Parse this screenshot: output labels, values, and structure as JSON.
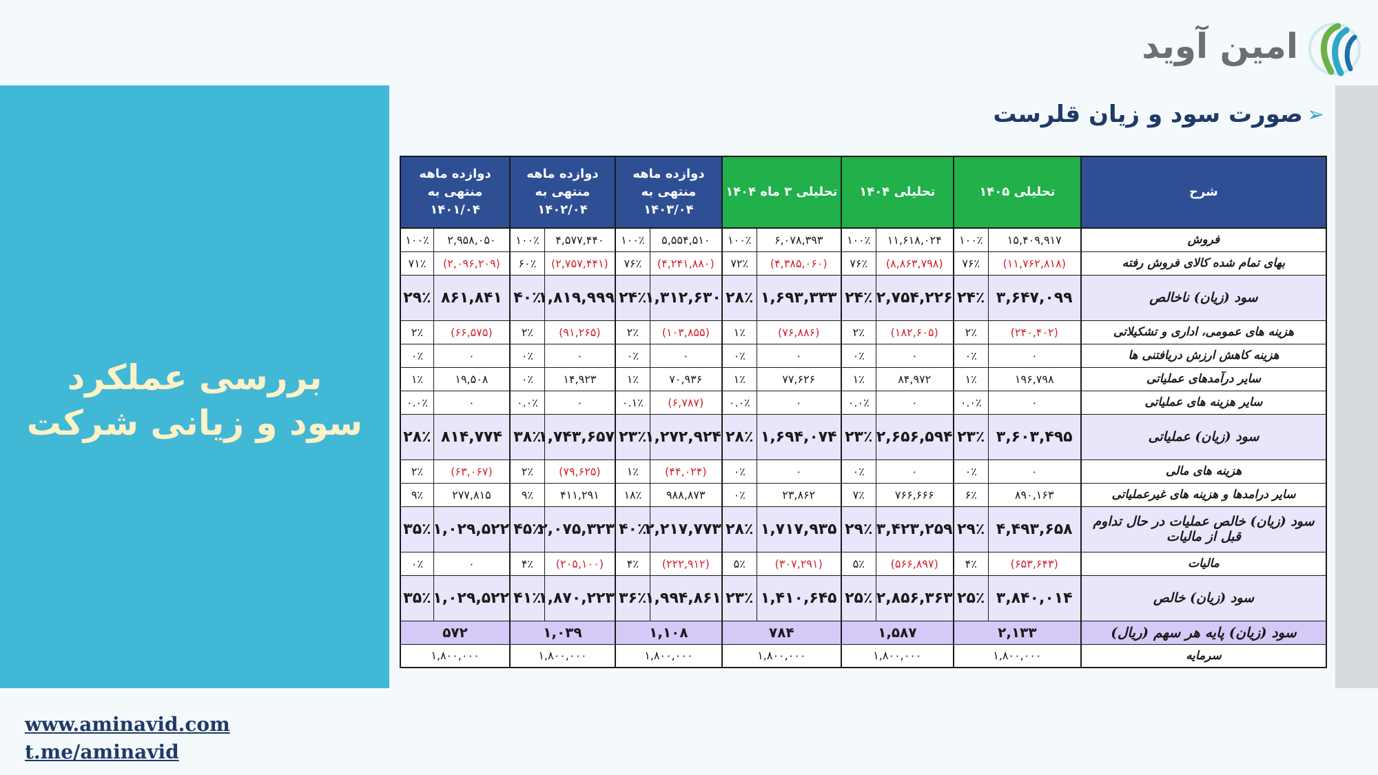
{
  "logo": {
    "text": "امین آوید"
  },
  "left_title": {
    "line1": "بررسی عملکرد",
    "line2": "سود و زیانی شرکت"
  },
  "section_title": "صورت سود و زیان قلرست",
  "links": {
    "website": "www.aminavid.com",
    "telegram": "t.me/aminavid"
  },
  "table": {
    "headers": {
      "desc": "شرح",
      "c1405": "تحلیلی ۱۴۰۵",
      "c1404": "تحلیلی ۱۴۰۴",
      "c3m1404": "تحلیلی ۳ ماه ۱۴۰۴",
      "c1403": "دوازده ماهه منتهی به ۱۴۰۳/۰۴",
      "c1402": "دوازده ماهه منتهی به ۱۴۰۲/۰۴",
      "c1401": "دوازده ماهه منتهی به ۱۴۰۱/۰۴"
    },
    "rows": [
      {
        "label": "فروش",
        "cells": [
          [
            "۱۵,۴۰۹,۹۱۷",
            "۱۰۰٪"
          ],
          [
            "۱۱,۶۱۸,۰۲۴",
            "۱۰۰٪"
          ],
          [
            "۶,۰۷۸,۳۹۳",
            "۱۰۰٪"
          ],
          [
            "۵,۵۵۴,۵۱۰",
            "۱۰۰٪"
          ],
          [
            "۴,۵۷۷,۴۴۰",
            "۱۰۰٪"
          ],
          [
            "۲,۹۵۸,۰۵۰",
            "۱۰۰٪"
          ]
        ]
      },
      {
        "label": "بهای تمام شده کالای فروش رفته",
        "cells": [
          [
            "(۱۱,۷۶۲,۸۱۸)",
            "۷۶٪"
          ],
          [
            "(۸,۸۶۳,۷۹۸)",
            "۷۶٪"
          ],
          [
            "(۴,۳۸۵,۰۶۰)",
            "۷۲٪"
          ],
          [
            "(۴,۲۴۱,۸۸۰)",
            "۷۶٪"
          ],
          [
            "(۲,۷۵۷,۴۴۱)",
            "۶۰٪"
          ],
          [
            "(۲,۰۹۶,۲۰۹)",
            "۷۱٪"
          ]
        ]
      },
      {
        "label": "سود (زیان) ناخالص",
        "cells": [
          [
            "۳,۶۴۷,۰۹۹",
            "۲۴٪"
          ],
          [
            "۲,۷۵۴,۲۲۶",
            "۲۴٪"
          ],
          [
            "۱,۶۹۳,۳۳۳",
            "۲۸٪"
          ],
          [
            "۱,۳۱۲,۶۳۰",
            "۲۴٪"
          ],
          [
            "۱,۸۱۹,۹۹۹",
            "۴۰٪"
          ],
          [
            "۸۶۱,۸۴۱",
            "۲۹٪"
          ]
        ]
      },
      {
        "label": "هزینه های عمومی، اداری و تشکیلاتی",
        "cells": [
          [
            "(۲۴۰,۴۰۲)",
            "۲٪"
          ],
          [
            "(۱۸۲,۶۰۵)",
            "۲٪"
          ],
          [
            "(۷۶,۸۸۶)",
            "۱٪"
          ],
          [
            "(۱۰۳,۸۵۵)",
            "۲٪"
          ],
          [
            "(۹۱,۲۶۵)",
            "۲٪"
          ],
          [
            "(۶۶,۵۷۵)",
            "۲٪"
          ]
        ]
      },
      {
        "label": "هزینه کاهش ارزش دریافتنی ها",
        "cells": [
          [
            "۰",
            "۰٪"
          ],
          [
            "۰",
            "۰٪"
          ],
          [
            "۰",
            "۰٪"
          ],
          [
            "۰",
            "۰٪"
          ],
          [
            "۰",
            "۰٪"
          ],
          [
            "۰",
            "۰٪"
          ]
        ]
      },
      {
        "label": "سایر درآمدهای عملیاتی",
        "cells": [
          [
            "۱۹۶,۷۹۸",
            "۱٪"
          ],
          [
            "۸۴,۹۷۲",
            "۱٪"
          ],
          [
            "۷۷,۶۲۶",
            "۱٪"
          ],
          [
            "۷۰,۹۳۶",
            "۱٪"
          ],
          [
            "۱۴,۹۲۳",
            "۰٪"
          ],
          [
            "۱۹,۵۰۸",
            "۱٪"
          ]
        ]
      },
      {
        "label": "سایر هزینه های عملیاتی",
        "cells": [
          [
            "۰",
            "۰.۰٪"
          ],
          [
            "۰",
            "۰.۰٪"
          ],
          [
            "۰",
            "۰.۰٪"
          ],
          [
            "(۶,۷۸۷)",
            "۰.۱٪"
          ],
          [
            "۰",
            "۰.۰٪"
          ],
          [
            "۰",
            "۰.۰٪"
          ]
        ]
      },
      {
        "label": "سود (زیان) عملیاتی",
        "cells": [
          [
            "۳,۶۰۳,۴۹۵",
            "۲۳٪"
          ],
          [
            "۲,۶۵۶,۵۹۴",
            "۲۳٪"
          ],
          [
            "۱,۶۹۴,۰۷۴",
            "۲۸٪"
          ],
          [
            "۱,۲۷۲,۹۲۴",
            "۲۳٪"
          ],
          [
            "۱,۷۴۳,۶۵۷",
            "۳۸٪"
          ],
          [
            "۸۱۴,۷۷۴",
            "۲۸٪"
          ]
        ]
      },
      {
        "label": "هزینه های مالی",
        "cells": [
          [
            "۰",
            "۰٪"
          ],
          [
            "۰",
            "۰٪"
          ],
          [
            "۰",
            "۰٪"
          ],
          [
            "(۴۴,۰۲۴)",
            "۱٪"
          ],
          [
            "(۷۹,۶۲۵)",
            "۲٪"
          ],
          [
            "(۶۳,۰۶۷)",
            "۲٪"
          ]
        ]
      },
      {
        "label": "سایر درامدها و هزینه های غیرعملیاتی",
        "cells": [
          [
            "۸۹۰,۱۶۳",
            "۶٪"
          ],
          [
            "۷۶۶,۶۶۶",
            "۷٪"
          ],
          [
            "۲۳,۸۶۲",
            "۰٪"
          ],
          [
            "۹۸۸,۸۷۳",
            "۱۸٪"
          ],
          [
            "۴۱۱,۲۹۱",
            "۹٪"
          ],
          [
            "۲۷۷,۸۱۵",
            "۹٪"
          ]
        ]
      },
      {
        "label": "سود (زیان) خالص عملیات در حال تداوم قبل از مالیات",
        "cells": [
          [
            "۴,۴۹۳,۶۵۸",
            "۲۹٪"
          ],
          [
            "۳,۴۲۳,۲۵۹",
            "۲۹٪"
          ],
          [
            "۱,۷۱۷,۹۳۵",
            "۲۸٪"
          ],
          [
            "۲,۲۱۷,۷۷۳",
            "۴۰٪"
          ],
          [
            "۲,۰۷۵,۳۲۳",
            "۴۵٪"
          ],
          [
            "۱,۰۲۹,۵۲۲",
            "۳۵٪"
          ]
        ]
      },
      {
        "label": "مالیات",
        "cells": [
          [
            "(۶۵۳,۶۴۳)",
            "۴٪"
          ],
          [
            "(۵۶۶,۸۹۷)",
            "۵٪"
          ],
          [
            "(۳۰۷,۲۹۱)",
            "۵٪"
          ],
          [
            "(۲۲۲,۹۱۲)",
            "۴٪"
          ],
          [
            "(۲۰۵,۱۰۰)",
            "۴٪"
          ],
          [
            "۰",
            "۰٪"
          ]
        ]
      },
      {
        "label": "سود (زیان) خالص",
        "cells": [
          [
            "۳,۸۴۰,۰۱۴",
            "۲۵٪"
          ],
          [
            "۲,۸۵۶,۳۶۳",
            "۲۵٪"
          ],
          [
            "۱,۴۱۰,۶۴۵",
            "۲۳٪"
          ],
          [
            "۱,۹۹۴,۸۶۱",
            "۳۶٪"
          ],
          [
            "۱,۸۷۰,۲۲۳",
            "۴۱٪"
          ],
          [
            "۱,۰۲۹,۵۲۲",
            "۳۵٪"
          ]
        ]
      },
      {
        "label": "سود (زیان) پایه هر سهم (ریال)",
        "cells": [
          "۲,۱۳۳",
          "۱,۵۸۷",
          "۷۸۴",
          "۱,۱۰۸",
          "۱,۰۳۹",
          "۵۷۲"
        ]
      },
      {
        "label": "سرمایه",
        "cells": [
          "۱,۸۰۰,۰۰۰",
          "۱,۸۰۰,۰۰۰",
          "۱,۸۰۰,۰۰۰",
          "۱,۸۰۰,۰۰۰",
          "۱,۸۰۰,۰۰۰",
          "۱,۸۰۰,۰۰۰"
        ]
      }
    ]
  },
  "colors": {
    "header_blue": "#2e4f94",
    "header_green": "#21b04a",
    "negative": "#d2232a",
    "panel": "#41b8d5"
  }
}
